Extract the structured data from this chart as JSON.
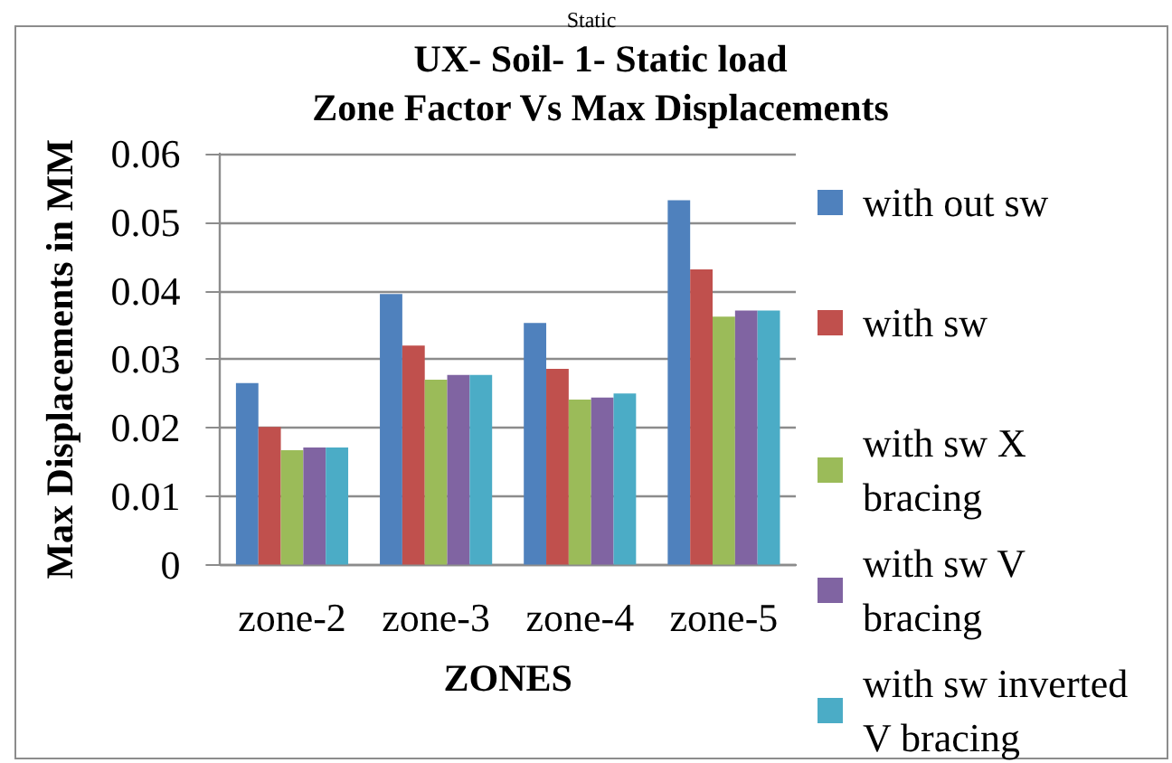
{
  "chart_data": {
    "type": "bar",
    "title": "UX- Soil- 1- Static load",
    "subtitle": "Zone Factor Vs Max Displacements",
    "xlabel": "ZONES",
    "ylabel": "Max Displacements in MM",
    "annotations": [
      "Static"
    ],
    "categories": [
      "zone-2",
      "zone-3",
      "zone-4",
      "zone-5"
    ],
    "series": [
      {
        "name": "with out sw",
        "color": "#4f81bd",
        "values": [
          0.0265,
          0.0395,
          0.0353,
          0.0532
        ]
      },
      {
        "name": "with sw",
        "color": "#c0504d",
        "values": [
          0.0201,
          0.032,
          0.0286,
          0.0431
        ]
      },
      {
        "name": "with sw X bracing",
        "color": "#9bbb59",
        "values": [
          0.0167,
          0.027,
          0.0241,
          0.0362
        ]
      },
      {
        "name": "with sw V bracing",
        "color": "#8064a2",
        "values": [
          0.0171,
          0.0277,
          0.0244,
          0.0371
        ]
      },
      {
        "name": "with sw inverted V bracing",
        "color": "#4bacc6",
        "values": [
          0.0171,
          0.0277,
          0.025,
          0.0371
        ]
      }
    ],
    "ylim": [
      0,
      0.06
    ],
    "yticks": [
      0,
      0.01,
      0.02,
      0.03,
      0.04,
      0.05,
      0.06
    ],
    "grid": "y",
    "legend": "right"
  }
}
